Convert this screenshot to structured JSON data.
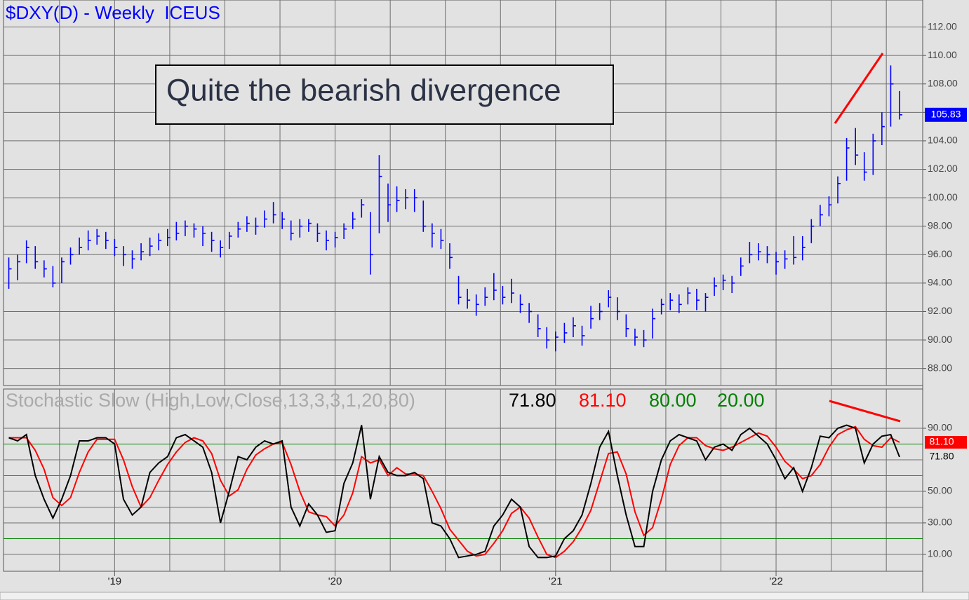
{
  "chart_data": [
    {
      "type": "ohlc",
      "title": "$DXY(D) - Weekly  ICEUS",
      "annotation": "Quite the bearish divergence",
      "color": "#0000ff",
      "x": [
        2018.52,
        2018.56,
        2018.6,
        2018.64,
        2018.68,
        2018.72,
        2018.76,
        2018.8,
        2018.84,
        2018.88,
        2018.92,
        2018.96,
        2019,
        2019.04,
        2019.08,
        2019.12,
        2019.16,
        2019.2,
        2019.24,
        2019.28,
        2019.32,
        2019.36,
        2019.4,
        2019.44,
        2019.48,
        2019.52,
        2019.56,
        2019.6,
        2019.64,
        2019.68,
        2019.72,
        2019.76,
        2019.8,
        2019.84,
        2019.88,
        2019.92,
        2019.96,
        2020,
        2020.04,
        2020.08,
        2020.12,
        2020.16,
        2020.2,
        2020.24,
        2020.28,
        2020.32,
        2020.36,
        2020.4,
        2020.44,
        2020.48,
        2020.52,
        2020.56,
        2020.6,
        2020.64,
        2020.68,
        2020.72,
        2020.76,
        2020.8,
        2020.84,
        2020.88,
        2020.92,
        2020.96,
        2021,
        2021.04,
        2021.08,
        2021.12,
        2021.16,
        2021.2,
        2021.24,
        2021.28,
        2021.32,
        2021.36,
        2021.4,
        2021.44,
        2021.48,
        2021.52,
        2021.56,
        2021.6,
        2021.64,
        2021.68,
        2021.72,
        2021.76,
        2021.8,
        2021.84,
        2021.88,
        2021.92,
        2021.96,
        2022,
        2022.04,
        2022.08,
        2022.12,
        2022.16,
        2022.2,
        2022.24,
        2022.28,
        2022.32,
        2022.36,
        2022.4,
        2022.44,
        2022.48,
        2022.52,
        2022.56
      ],
      "high": [
        95.8,
        96.0,
        97.0,
        96.6,
        95.6,
        95.2,
        95.8,
        96.5,
        97.2,
        97.7,
        97.8,
        97.6,
        97.1,
        96.6,
        96.3,
        96.8,
        97.2,
        97.5,
        97.8,
        98.3,
        98.4,
        98.2,
        98.0,
        97.6,
        97.0,
        97.6,
        98.3,
        98.7,
        98.6,
        99.1,
        99.7,
        99.0,
        98.4,
        98.5,
        98.5,
        98.2,
        97.7,
        97.6,
        98.2,
        99.0,
        99.9,
        99.0,
        103.0,
        101.0,
        100.8,
        100.6,
        100.6,
        99.8,
        98.2,
        97.8,
        96.8,
        94.5,
        93.6,
        93.2,
        93.7,
        94.7,
        93.8,
        94.3,
        93.2,
        92.6,
        91.8,
        90.9,
        90.6,
        91.2,
        91.6,
        91.0,
        92.4,
        92.6,
        93.5,
        93.0,
        91.8,
        90.8,
        90.7,
        92.2,
        92.9,
        93.3,
        93.2,
        93.7,
        93.6,
        93.3,
        94.4,
        94.6,
        94.5,
        95.8,
        96.9,
        96.8,
        96.6,
        96.2,
        96.3,
        97.3,
        97.3,
        98.5,
        99.5,
        100.1,
        101.5,
        104.2,
        104.9,
        103.2,
        104.5,
        106.0,
        109.3,
        107.5
      ],
      "low": [
        93.6,
        94.2,
        95.4,
        95.0,
        94.4,
        93.7,
        94.0,
        95.3,
        96.0,
        96.3,
        96.7,
        96.4,
        95.9,
        95.2,
        95.0,
        95.6,
        95.9,
        96.3,
        96.6,
        97.0,
        97.3,
        97.2,
        96.6,
        96.2,
        95.8,
        96.4,
        97.2,
        97.6,
        97.4,
        97.9,
        98.2,
        97.8,
        97.0,
        97.2,
        97.6,
        96.9,
        96.3,
        96.5,
        97.1,
        97.8,
        98.6,
        94.6,
        97.5,
        98.3,
        99.0,
        99.2,
        99.0,
        97.6,
        96.5,
        96.4,
        95.0,
        92.5,
        92.2,
        91.7,
        92.4,
        92.8,
        92.5,
        92.6,
        91.9,
        91.2,
        90.2,
        89.4,
        89.2,
        89.8,
        90.2,
        89.6,
        90.8,
        91.4,
        92.3,
        91.4,
        90.2,
        89.6,
        89.5,
        90.1,
        91.8,
        92.1,
        91.9,
        92.5,
        92.1,
        92.0,
        93.1,
        93.5,
        93.3,
        94.5,
        95.4,
        95.6,
        95.4,
        94.6,
        95.0,
        95.3,
        95.6,
        96.8,
        98.0,
        98.7,
        99.6,
        101.2,
        102.3,
        101.2,
        101.6,
        103.7,
        105.0,
        105.5
      ],
      "close": [
        95.0,
        95.5,
        96.5,
        95.5,
        95.0,
        94.0,
        95.5,
        96.0,
        96.5,
        97.0,
        97.3,
        97.0,
        96.5,
        96.0,
        95.7,
        96.2,
        96.6,
        97.0,
        97.2,
        97.5,
        98.0,
        97.8,
        97.5,
        97.0,
        96.5,
        97.3,
        97.8,
        98.2,
        98.0,
        98.5,
        98.8,
        98.5,
        97.5,
        98.0,
        98.2,
        97.5,
        97.0,
        97.2,
        97.8,
        98.5,
        99.5,
        96.0,
        101.5,
        99.5,
        99.8,
        100.0,
        100.0,
        98.0,
        97.5,
        97.0,
        95.8,
        93.0,
        92.8,
        92.5,
        93.0,
        93.5,
        93.0,
        93.3,
        92.5,
        92.0,
        90.8,
        90.0,
        90.2,
        90.5,
        91.0,
        90.3,
        91.5,
        92.0,
        93.0,
        92.0,
        90.8,
        90.2,
        90.0,
        91.5,
        92.5,
        92.8,
        92.5,
        93.3,
        92.8,
        93.0,
        93.8,
        94.2,
        94.0,
        95.2,
        96.0,
        96.2,
        96.0,
        95.5,
        95.7,
        95.8,
        96.5,
        98.0,
        98.8,
        99.5,
        101.0,
        103.5,
        103.0,
        101.8,
        104.0,
        105.0,
        108.0,
        105.83
      ],
      "xlim": [
        2018.496,
        2022.665
      ],
      "ylim": [
        86.8,
        113.9
      ],
      "yticks": [
        {
          "value": 88,
          "label": "88.00"
        },
        {
          "value": 90,
          "label": "90.00"
        },
        {
          "value": 92,
          "label": "92.00"
        },
        {
          "value": 94,
          "label": "94.00"
        },
        {
          "value": 96,
          "label": "96.00"
        },
        {
          "value": 98,
          "label": "98.00"
        },
        {
          "value": 100,
          "label": "100.00"
        },
        {
          "value": 102,
          "label": "102.00"
        },
        {
          "value": 104,
          "label": "104.00"
        },
        {
          "value": 106,
          "label": "106.00"
        },
        {
          "value": 108,
          "label": "108.00"
        },
        {
          "value": 110,
          "label": "110.00"
        },
        {
          "value": 112,
          "label": "112.00"
        }
      ],
      "xticks": [
        {
          "value": 2019,
          "label": "'19"
        },
        {
          "value": 2020,
          "label": "'20"
        },
        {
          "value": 2021,
          "label": "'21"
        },
        {
          "value": 2022,
          "label": "'22"
        }
      ],
      "minor_xticks": [
        2018.75,
        2019.25,
        2019.5,
        2019.75,
        2020.25,
        2020.5,
        2020.75,
        2021.25,
        2021.5,
        2021.75,
        2022.25,
        2022.5
      ],
      "grid": true
    },
    {
      "type": "line",
      "title": "Stochastic Slow (High,Low,Close,13,3,3,1,20,80)",
      "series": [
        {
          "color": "#000000",
          "last_label": "71.80",
          "values": [
            84,
            82,
            86,
            60,
            45,
            33,
            45,
            60,
            82,
            82,
            84,
            84,
            80,
            45,
            35,
            40,
            62,
            68,
            72,
            84,
            86,
            82,
            78,
            62,
            30,
            50,
            72,
            70,
            78,
            82,
            80,
            82,
            40,
            28,
            42,
            35,
            24,
            25,
            55,
            68,
            92,
            45,
            72,
            62,
            60,
            60,
            62,
            58,
            30,
            28,
            20,
            8,
            9,
            10,
            12,
            28,
            35,
            45,
            40,
            15,
            8,
            8,
            9,
            20,
            25,
            35,
            55,
            78,
            88,
            60,
            35,
            15,
            15,
            50,
            70,
            82,
            86,
            84,
            82,
            70,
            78,
            80,
            76,
            86,
            90,
            85,
            80,
            70,
            58,
            65,
            50,
            65,
            85,
            84,
            90,
            92,
            90,
            68,
            80,
            85,
            86,
            71.8
          ]
        },
        {
          "color": "#ff0000",
          "last_label": "81.10",
          "values": [
            84,
            84,
            84,
            76,
            64,
            46,
            41,
            46,
            62,
            75,
            83,
            83,
            83,
            70,
            53,
            40,
            46,
            57,
            67,
            75,
            81,
            84,
            82,
            74,
            57,
            47,
            51,
            64,
            73,
            77,
            80,
            81,
            67,
            50,
            37,
            35,
            34,
            28,
            35,
            49,
            72,
            68,
            70,
            60,
            65,
            61,
            61,
            60,
            50,
            39,
            26,
            19,
            12,
            9,
            10,
            17,
            25,
            36,
            40,
            33,
            21,
            10,
            8,
            12,
            18,
            27,
            38,
            56,
            74,
            75,
            61,
            37,
            22,
            27,
            45,
            67,
            79,
            84,
            84,
            79,
            77,
            76,
            78,
            81,
            84,
            87,
            85,
            78,
            69,
            64,
            58,
            60,
            67,
            78,
            86,
            89,
            91,
            83,
            79,
            78,
            84,
            81.1
          ]
        }
      ],
      "levels": [
        {
          "value": 80,
          "label": "80.00",
          "color": "#008000"
        },
        {
          "value": 20,
          "label": "20.00",
          "color": "#008000"
        }
      ],
      "ylim": [
        -0.7,
        114.9
      ],
      "yticks": [
        {
          "value": 10,
          "label": "10.00"
        },
        {
          "value": 30,
          "label": "30.00"
        },
        {
          "value": 50,
          "label": "50.00"
        },
        {
          "value": 90,
          "label": "90.00"
        }
      ],
      "minor_yticks": [
        40,
        60,
        70
      ],
      "grid": true
    }
  ]
}
